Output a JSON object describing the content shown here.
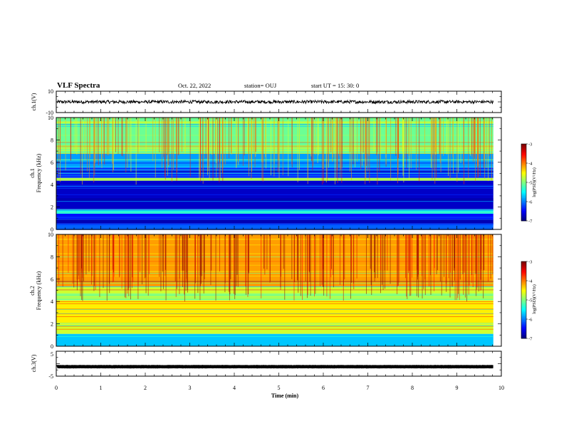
{
  "header": {
    "title": "VLF Spectra",
    "date": "Oct. 22, 2022",
    "station": "station= OUJ",
    "start": "start  UT =   15: 30: 0"
  },
  "chart_data": {
    "type": "heatmap",
    "title": "VLF Spectra",
    "xlabel": "Time  (min)",
    "xlim": [
      0,
      10
    ],
    "xticks": [
      "0",
      "1",
      "2",
      "3",
      "4",
      "5",
      "6",
      "7",
      "8",
      "9",
      "10"
    ],
    "data_end_min": 9.82,
    "panels": [
      {
        "id": "ch1-waveform",
        "type": "line",
        "ylabel": "ch.1(V)",
        "ylim": [
          -10,
          10
        ],
        "yticks": [
          "10",
          "-10"
        ],
        "baseline": 0,
        "amplitude": 1.5,
        "color": "#000000"
      },
      {
        "id": "ch1-spectrogram",
        "type": "heatmap",
        "ylabel_top": "ch.1",
        "ylabel": "Frequency  (kHz)",
        "ylim": [
          0,
          10
        ],
        "yticks": [
          "0",
          "2",
          "4",
          "6",
          "8",
          "10"
        ],
        "colorbar": {
          "label": "log(PSD)(V²/Hz)",
          "range": [
            -7,
            -3
          ],
          "ticks": [
            "-3",
            "-4",
            "-5",
            "-6",
            "-7"
          ]
        },
        "bands": [
          {
            "f0": 6.8,
            "f1": 10.0,
            "level": 0.48
          },
          {
            "f0": 5.5,
            "f1": 6.8,
            "level": 0.28
          },
          {
            "f0": 4.6,
            "f1": 5.5,
            "level": 0.17
          },
          {
            "f0": 4.35,
            "f1": 4.6,
            "level": 0.55
          },
          {
            "f0": 1.8,
            "f1": 4.35,
            "level": 0.07
          },
          {
            "f0": 1.4,
            "f1": 1.8,
            "level": 0.4
          },
          {
            "f0": 0.9,
            "f1": 1.4,
            "level": 0.14
          },
          {
            "f0": 0.55,
            "f1": 0.9,
            "level": 0.05
          },
          {
            "f0": 0.0,
            "f1": 0.55,
            "level": 0.22
          }
        ]
      },
      {
        "id": "ch2-spectrogram",
        "type": "heatmap",
        "ylabel_top": "ch.2",
        "ylabel": "Frequency  (kHz)",
        "ylim": [
          0,
          10
        ],
        "yticks": [
          "0",
          "2",
          "4",
          "6",
          "8",
          "10"
        ],
        "colorbar": {
          "label": "log(PSD)(V²/Hz)",
          "range": [
            -7,
            -3
          ],
          "ticks": [
            "-3",
            "-4",
            "-5",
            "-6",
            "-7"
          ]
        },
        "bands": [
          {
            "f0": 5.4,
            "f1": 10.0,
            "level": 0.72
          },
          {
            "f0": 4.7,
            "f1": 5.4,
            "level": 0.58
          },
          {
            "f0": 4.1,
            "f1": 4.7,
            "level": 0.5
          },
          {
            "f0": 2.0,
            "f1": 4.1,
            "level": 0.64
          },
          {
            "f0": 1.1,
            "f1": 2.0,
            "level": 0.58
          },
          {
            "f0": 0.0,
            "f1": 1.1,
            "level": 0.32
          }
        ]
      },
      {
        "id": "ch3-waveform",
        "type": "line",
        "ylabel": "ch.3(V)",
        "ylim": [
          -5,
          5
        ],
        "yticks": [
          "5",
          "-5"
        ],
        "baseline": -1.2,
        "amplitude": 0.05,
        "color": "#000000"
      }
    ]
  }
}
